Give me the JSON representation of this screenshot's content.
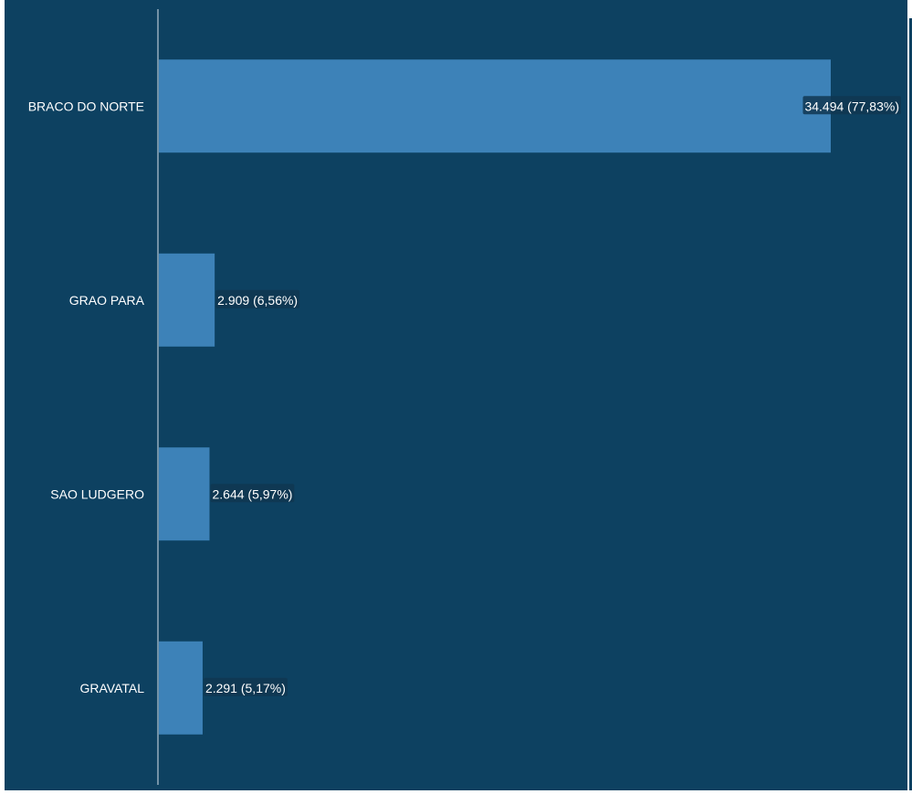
{
  "chart_data": {
    "type": "bar",
    "orientation": "horizontal",
    "categories": [
      "BRACO DO NORTE",
      "GRAO PARA",
      "SAO LUDGERO",
      "GRAVATAL"
    ],
    "values": [
      34494,
      2909,
      2644,
      2291
    ],
    "data_labels": [
      "34.494 (77,83%)",
      "2.909 (6,56%)",
      "2.644 (5,97%)",
      "2.291 (5,17%)"
    ],
    "percentages": [
      77.83,
      6.56,
      5.97,
      5.17
    ],
    "xlim": [
      0,
      34494
    ],
    "grid": false,
    "legend": "none",
    "colors": {
      "background": "#0d4161",
      "bar": "#3d82b8",
      "axis": "#d9e4ec",
      "label_bg": "#103751",
      "text": "#ffffff"
    }
  }
}
